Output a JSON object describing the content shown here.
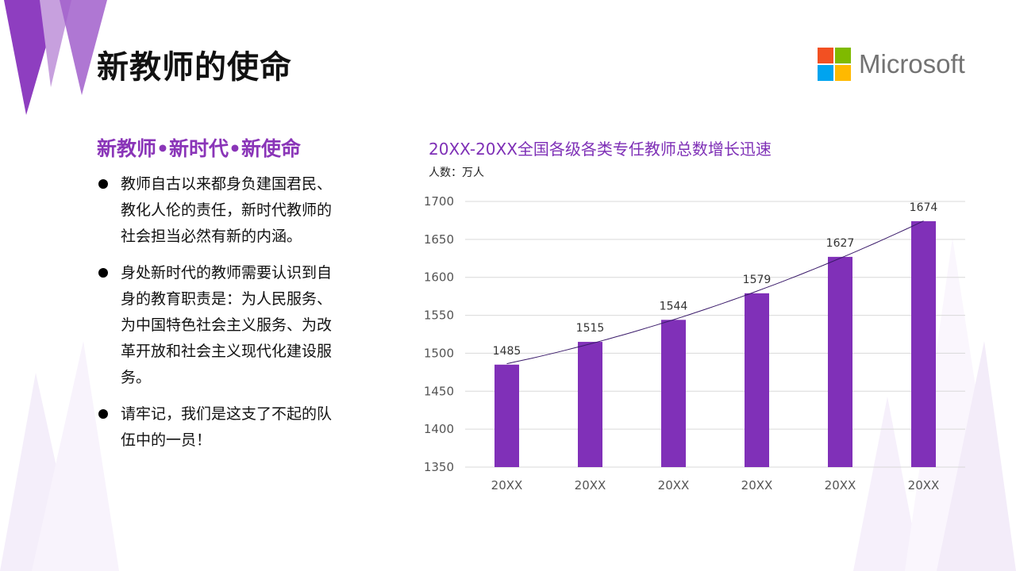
{
  "page": {
    "title": "新教师的使命",
    "logo_text": "Microsoft",
    "logo_colors": [
      "#f25022",
      "#7fba00",
      "#00a4ef",
      "#ffb900"
    ],
    "accent_color": "#8a35b8"
  },
  "left": {
    "subtitle": "新教师•新时代•新使命",
    "bullets": [
      "教师自古以来都身负建国君民、教化人伦的责任，新时代教师的社会担当必然有新的内涵。",
      "身处新时代的教师需要认识到自身的教育职责是：为人民服务、为中国特色社会主义服务、为改革开放和社会主义现代化建设服务。",
      "请牢记，我们是这支了不起的队伍中的一员！"
    ]
  },
  "chart_data": {
    "type": "bar",
    "title": "20XX-20XX全国各级各类专任教师总数增长迅速",
    "unit_label": "人数：万人",
    "categories": [
      "20XX",
      "20XX",
      "20XX",
      "20XX",
      "20XX",
      "20XX"
    ],
    "values": [
      1485,
      1515,
      1544,
      1579,
      1627,
      1674
    ],
    "ylim": [
      1350,
      1700
    ],
    "yticks": [
      1350,
      1400,
      1450,
      1500,
      1550,
      1600,
      1650,
      1700
    ],
    "bar_color": "#8030b8",
    "trendline": true,
    "trendline_color": "#3a1a6a",
    "grid": true,
    "data_labels": true
  }
}
